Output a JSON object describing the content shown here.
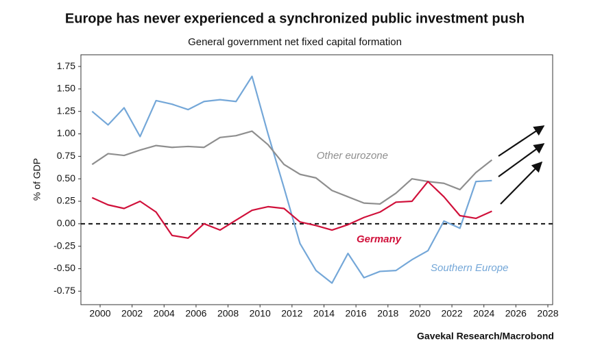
{
  "chart_data": {
    "type": "line",
    "title": "Europe has never experienced a synchronized public investment push",
    "subtitle": "General government net fixed capital formation",
    "y_label": "% of GDP",
    "source": "Gavekal Research/Macrobond",
    "x": [
      1999.5,
      2000.5,
      2001.5,
      2002.5,
      2003.5,
      2004.5,
      2005.5,
      2006.5,
      2007.5,
      2008.5,
      2009.5,
      2010.5,
      2011.5,
      2012.5,
      2013.5,
      2014.5,
      2015.5,
      2016.5,
      2017.5,
      2018.5,
      2019.5,
      2020.5,
      2021.5,
      2022.5,
      2023.5,
      2024.5
    ],
    "series": [
      {
        "name": "Southern Europe",
        "color": "#74a7d8",
        "values": [
          1.25,
          1.1,
          1.29,
          0.97,
          1.37,
          1.33,
          1.27,
          1.36,
          1.38,
          1.36,
          1.64,
          1.0,
          0.4,
          -0.22,
          -0.52,
          -0.66,
          -0.33,
          -0.6,
          -0.53,
          -0.52,
          -0.4,
          -0.3,
          0.03,
          -0.05,
          0.47,
          0.48
        ]
      },
      {
        "name": "Other eurozone",
        "color": "#8e8e8e",
        "values": [
          0.66,
          0.78,
          0.76,
          0.82,
          0.87,
          0.85,
          0.86,
          0.85,
          0.96,
          0.98,
          1.03,
          0.88,
          0.66,
          0.55,
          0.51,
          0.37,
          0.3,
          0.23,
          0.22,
          0.34,
          0.5,
          0.47,
          0.45,
          0.38,
          0.57,
          0.71
        ]
      },
      {
        "name": "Germany",
        "color": "#d0103a",
        "values": [
          0.29,
          0.21,
          0.17,
          0.25,
          0.13,
          -0.13,
          -0.16,
          0.0,
          -0.07,
          0.04,
          0.15,
          0.19,
          0.17,
          0.02,
          -0.02,
          -0.07,
          -0.01,
          0.07,
          0.13,
          0.24,
          0.25,
          0.47,
          0.3,
          0.09,
          0.06,
          0.14
        ]
      }
    ],
    "xlim": [
      1998.8,
      2028.3
    ],
    "xticks": [
      2000,
      2002,
      2004,
      2006,
      2008,
      2010,
      2012,
      2014,
      2016,
      2018,
      2020,
      2022,
      2024,
      2026,
      2028
    ],
    "ylim": [
      -0.9,
      1.88
    ],
    "yticks": [
      {
        "value": -0.75,
        "label": "-0.75"
      },
      {
        "value": -0.5,
        "label": "-0.50"
      },
      {
        "value": -0.25,
        "label": "-0.25"
      },
      {
        "value": 0,
        "label": "0.00"
      },
      {
        "value": 0.25,
        "label": "0.25"
      },
      {
        "value": 0.5,
        "label": "0.50"
      },
      {
        "value": 0.75,
        "label": "0.75"
      },
      {
        "value": 1,
        "label": "1.00"
      },
      {
        "value": 1.25,
        "label": "1.25"
      },
      {
        "value": 1.5,
        "label": "1.50"
      },
      {
        "value": 1.75,
        "label": "1.75"
      }
    ],
    "grid": false
  }
}
